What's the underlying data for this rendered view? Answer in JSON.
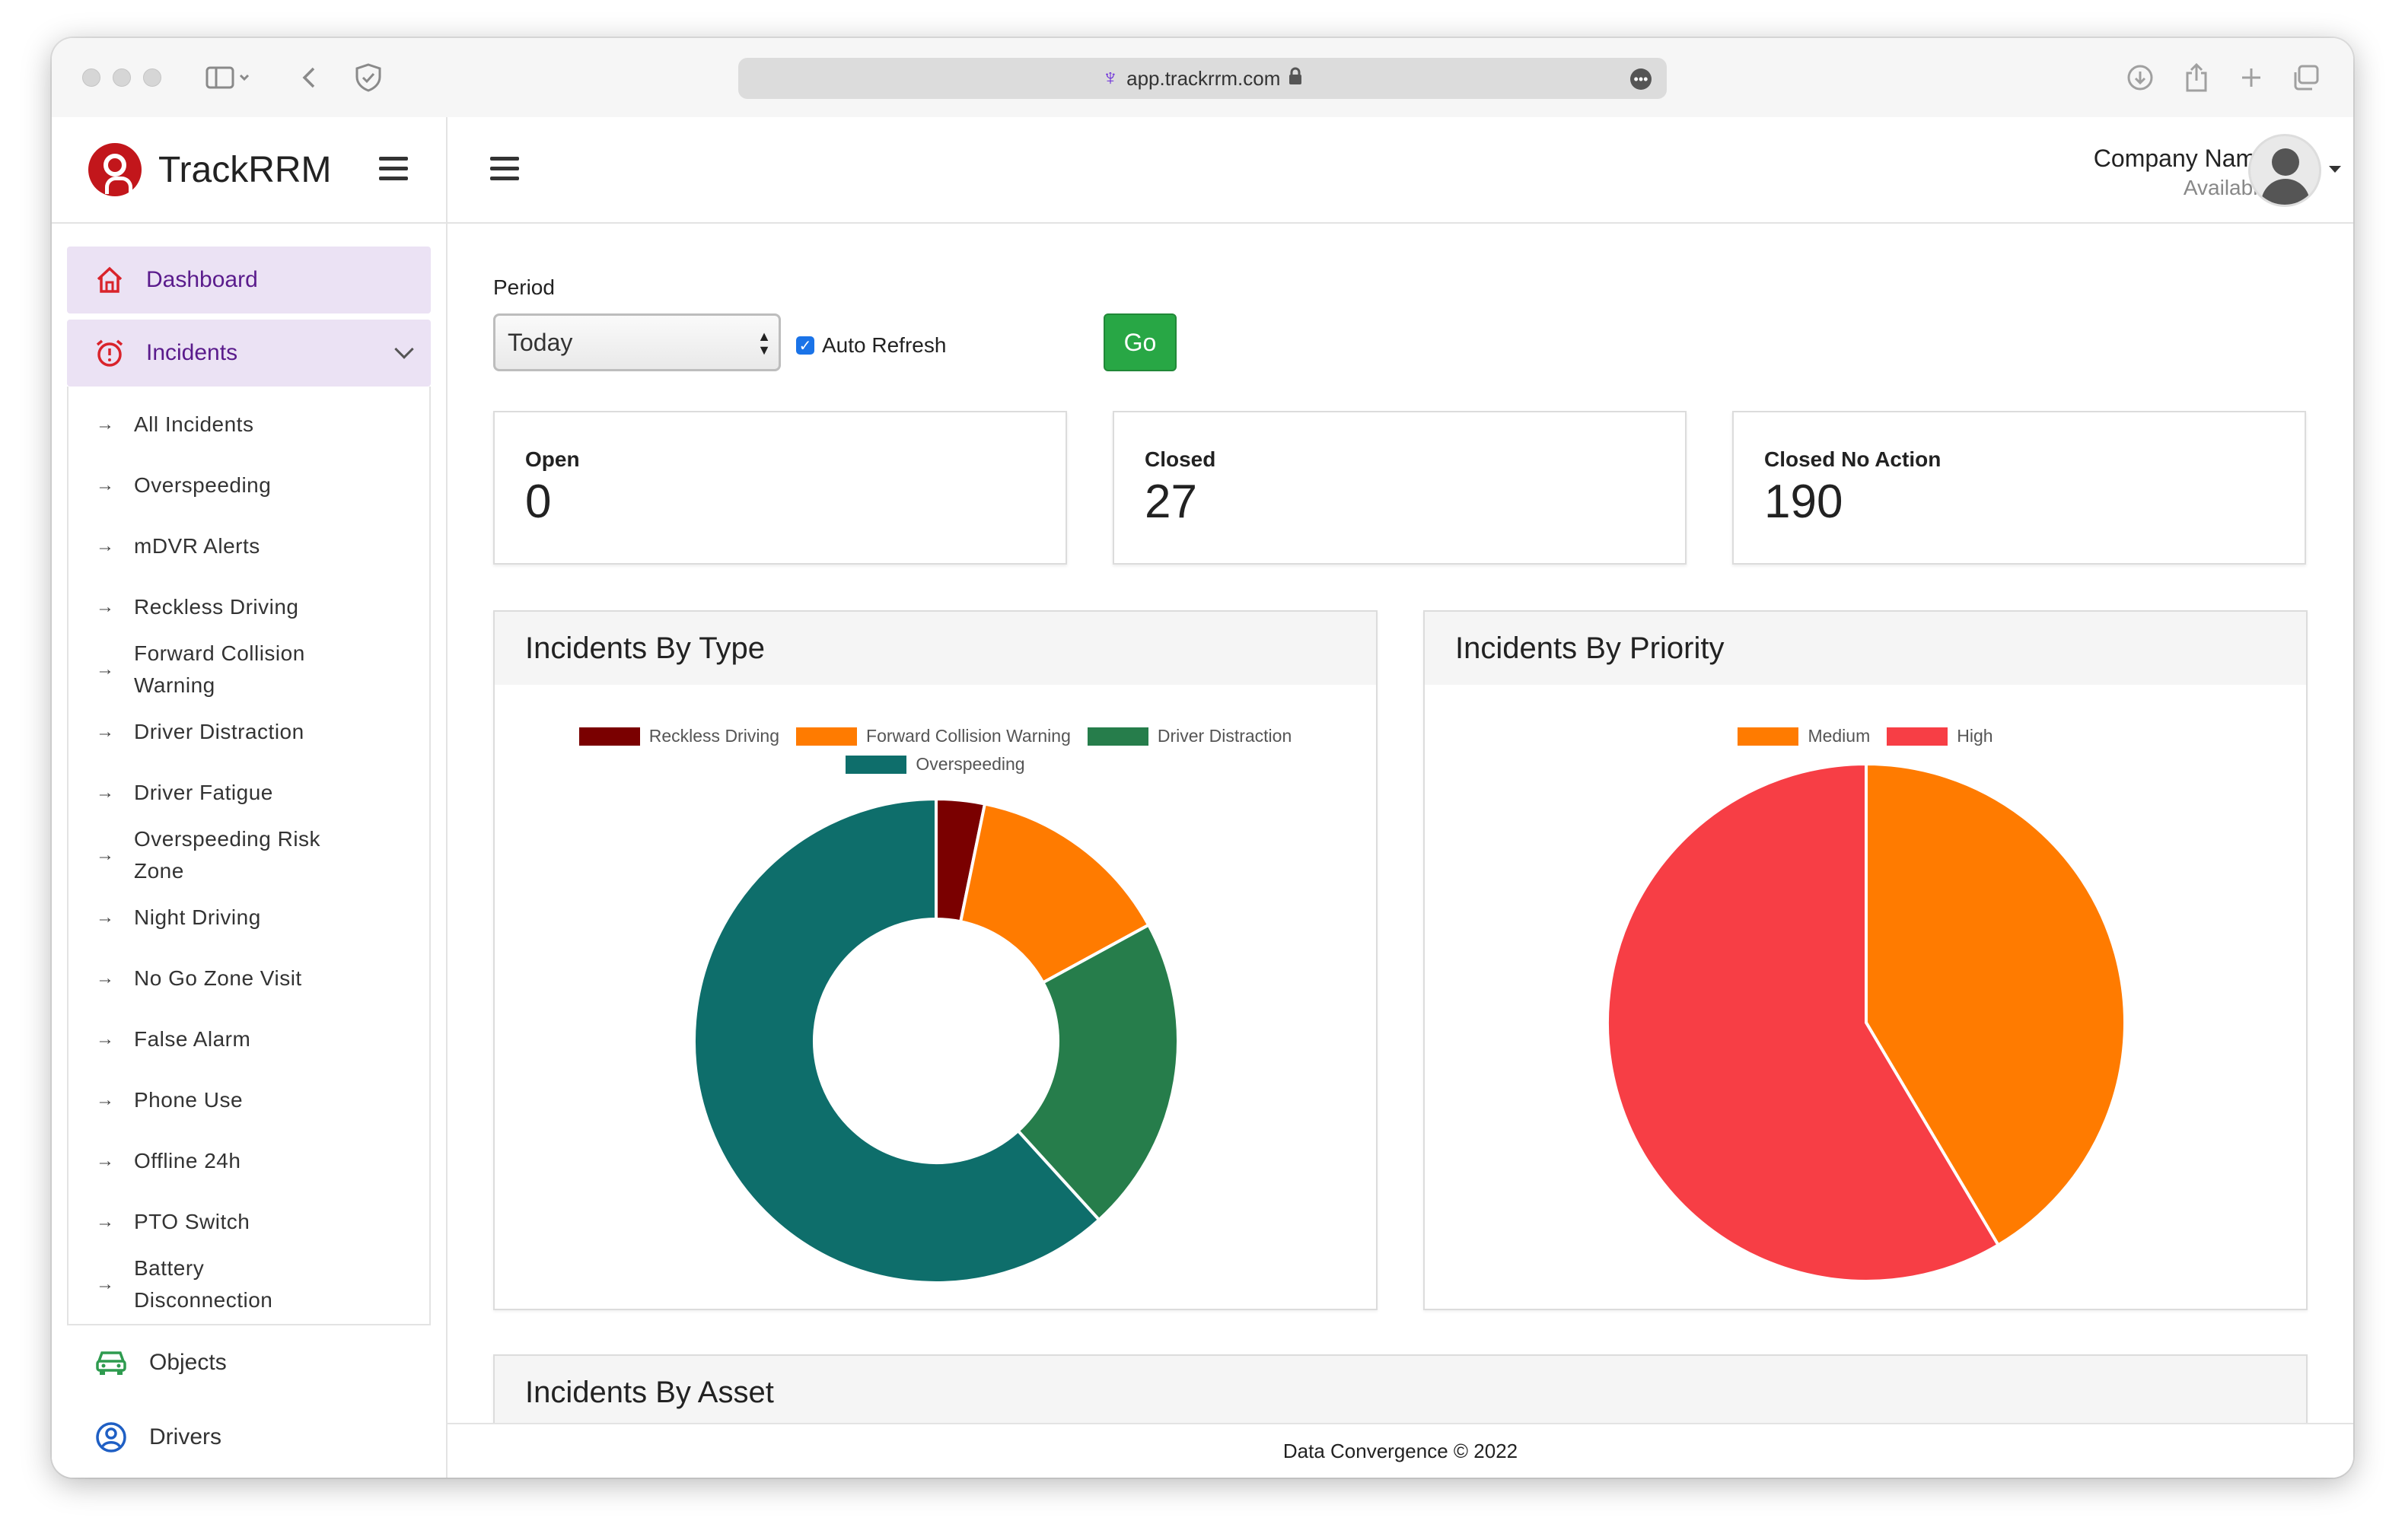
{
  "browser": {
    "url": "app.trackrrm.com"
  },
  "brand": {
    "name": "TrackRRM"
  },
  "sidebar": {
    "dashboard": "Dashboard",
    "incidents": "Incidents",
    "incident_items": [
      "All Incidents",
      "Overspeeding",
      "mDVR Alerts",
      "Reckless Driving",
      "Forward Collision Warning",
      "Driver Distraction",
      "Driver Fatigue",
      "Overspeeding Risk Zone",
      "Night Driving",
      "No Go Zone Visit",
      "False Alarm",
      "Phone Use",
      "Offline 24h",
      "PTO Switch",
      "Battery Disconnection"
    ],
    "objects": "Objects",
    "drivers": "Drivers"
  },
  "header": {
    "company": "Company Name",
    "status": "Available"
  },
  "filter": {
    "period_label": "Period",
    "period_value": "Today",
    "auto_refresh": "Auto Refresh",
    "go": "Go"
  },
  "stats": [
    {
      "label": "Open",
      "value": "0"
    },
    {
      "label": "Closed",
      "value": "27"
    },
    {
      "label": "Closed No Action",
      "value": "190"
    }
  ],
  "cards": {
    "by_type": "Incidents By Type",
    "by_priority": "Incidents By Priority",
    "by_asset": "Incidents By Asset"
  },
  "footer": "Data Convergence © 2022",
  "chart_data": [
    {
      "type": "pie",
      "variant": "doughnut",
      "title": "Incidents By Type",
      "categories": [
        "Reckless Driving",
        "Forward Collision Warning",
        "Driver Distraction",
        "Overspeeding"
      ],
      "values": [
        7,
        30,
        46,
        134
      ],
      "colors": [
        "#7a0000",
        "#ff7b00",
        "#267d4b",
        "#0e6e6b"
      ],
      "legend": "top"
    },
    {
      "type": "pie",
      "title": "Incidents By Priority",
      "categories": [
        "Medium",
        "High"
      ],
      "values": [
        90,
        127
      ],
      "colors": [
        "#ff7b00",
        "#f73e45"
      ],
      "legend": "top"
    }
  ]
}
